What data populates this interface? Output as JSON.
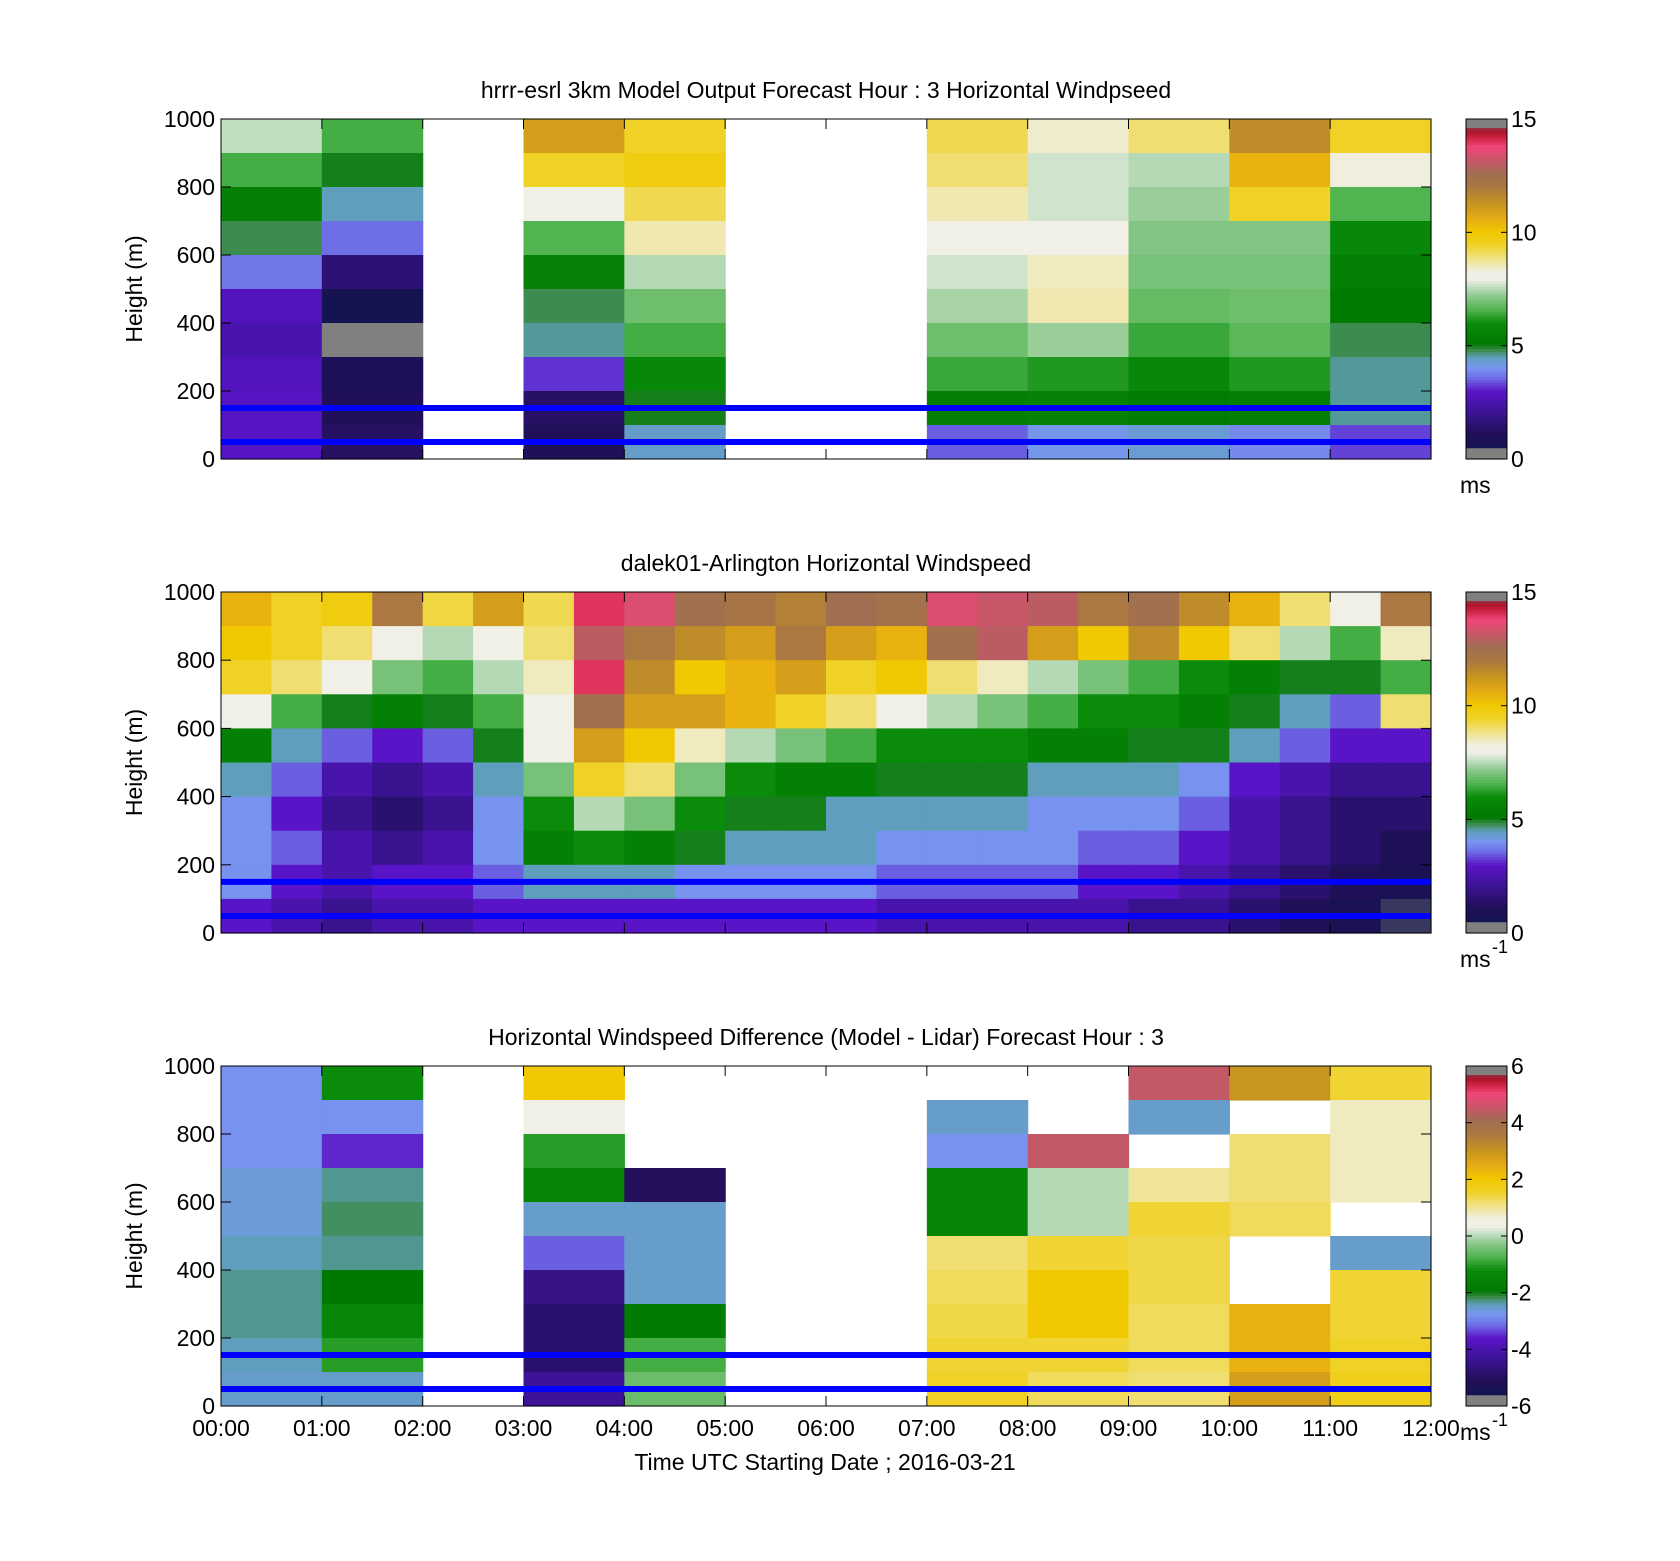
{
  "chart_data": [
    {
      "type": "heatmap",
      "title": "hrrr-esrl 3km Model Output   Forecast Hour : 3 Horizontal Windpseed",
      "ylabel": "Height (m)",
      "ylim": [
        0,
        1000
      ],
      "yticks": [
        "0",
        "200",
        "400",
        "600",
        "800",
        "1000"
      ],
      "xlim": [
        "00:00",
        "12:00"
      ],
      "colorbar": {
        "ticks": [
          "0",
          "5",
          "10",
          "15"
        ],
        "range": [
          0,
          15
        ],
        "unit": "ms"
      },
      "reference_lines_m": [
        50,
        150
      ],
      "time_bins": [
        "00:00",
        "01:00",
        "02:00",
        "03:00",
        "04:00",
        "05:00",
        "06:00",
        "07:00",
        "08:00",
        "09:00",
        "10:00",
        "11:00"
      ],
      "heights_top_m": [
        1000,
        900,
        800,
        700,
        600,
        500,
        400,
        300,
        200,
        100
      ],
      "values": [
        [
          7.6,
          6.5,
          null,
          11.0,
          9.5,
          null,
          null,
          9.2,
          8.4,
          9.0,
          11.5,
          9.5
        ],
        [
          6.5,
          5.0,
          null,
          9.5,
          9.8,
          null,
          null,
          9.0,
          7.7,
          7.5,
          10.5,
          8.3
        ],
        [
          5.5,
          4.5,
          null,
          8.2,
          9.2,
          null,
          null,
          8.6,
          7.7,
          7.3,
          9.5,
          6.6
        ],
        [
          4.8,
          3.6,
          null,
          6.6,
          8.6,
          null,
          null,
          8.0,
          8.1,
          7.1,
          7.1,
          5.8
        ],
        [
          3.7,
          1.6,
          null,
          5.6,
          7.5,
          null,
          null,
          7.7,
          8.5,
          7.0,
          7.0,
          5.4
        ],
        [
          2.8,
          0.6,
          null,
          4.8,
          6.9,
          null,
          null,
          7.4,
          8.6,
          6.8,
          6.9,
          5.2
        ],
        [
          2.5,
          0.3,
          null,
          4.6,
          6.5,
          null,
          null,
          6.9,
          7.3,
          6.4,
          6.7,
          4.8
        ],
        [
          2.8,
          0.9,
          null,
          3.2,
          5.8,
          null,
          null,
          6.4,
          6.2,
          5.8,
          6.2,
          4.6
        ],
        [
          2.9,
          1.1,
          null,
          1.4,
          5.0,
          null,
          null,
          5.5,
          5.6,
          5.3,
          5.5,
          4.6
        ],
        [
          2.9,
          1.3,
          null,
          1.0,
          4.4,
          null,
          null,
          3.5,
          4.1,
          4.3,
          3.9,
          3.3
        ]
      ]
    },
    {
      "type": "heatmap",
      "title": "dalek01-Arlington  Horizontal Windspeed",
      "ylabel": "Height (m)",
      "ylim": [
        0,
        1000
      ],
      "yticks": [
        "0",
        "200",
        "400",
        "600",
        "800",
        "1000"
      ],
      "xlim": [
        "00:00",
        "12:00"
      ],
      "colorbar": {
        "ticks": [
          "0",
          "5",
          "10",
          "15"
        ],
        "range": [
          0,
          15
        ],
        "unit": "ms",
        "unit_exp": "-1"
      },
      "reference_lines_m": [
        50,
        150
      ],
      "time_bins": [
        "00:00",
        "00:30",
        "01:00",
        "01:30",
        "02:00",
        "02:30",
        "03:00",
        "03:30",
        "04:00",
        "04:30",
        "05:00",
        "05:30",
        "06:00",
        "06:30",
        "07:00",
        "07:30",
        "08:00",
        "08:30",
        "09:00",
        "09:30",
        "10:00",
        "10:30",
        "11:00",
        "11:30"
      ],
      "heights_top_m": [
        1000,
        900,
        800,
        700,
        600,
        500,
        400,
        300,
        200,
        100
      ],
      "values": [
        [
          10.5,
          9.5,
          9.8,
          12.0,
          9.3,
          11.0,
          9.2,
          14.0,
          13.5,
          12.5,
          12.2,
          11.8,
          12.6,
          12.4,
          13.5,
          13.2,
          13.0,
          12.0,
          12.5,
          11.5,
          10.5,
          9.0,
          8.0,
          12.0
        ],
        [
          10.0,
          9.5,
          9.0,
          8.0,
          7.5,
          8.0,
          9.0,
          13.0,
          12.0,
          11.5,
          11.0,
          12.0,
          11.0,
          10.5,
          12.5,
          13.0,
          11.0,
          10.0,
          11.5,
          10.0,
          9.0,
          7.5,
          6.5,
          8.5
        ],
        [
          9.5,
          9.0,
          8.0,
          7.0,
          6.5,
          7.5,
          8.5,
          14.0,
          11.5,
          10.0,
          10.5,
          11.0,
          9.5,
          10.0,
          9.0,
          8.5,
          7.5,
          7.0,
          6.5,
          6.0,
          5.5,
          5.0,
          5.0,
          6.5
        ],
        [
          8.0,
          6.5,
          5.0,
          5.5,
          5.0,
          6.5,
          8.0,
          12.5,
          11.0,
          11.0,
          10.5,
          9.5,
          9.0,
          8.0,
          7.5,
          7.0,
          6.5,
          6.0,
          6.0,
          5.5,
          5.0,
          4.5,
          3.5,
          9.0
        ],
        [
          5.5,
          4.5,
          3.5,
          3.0,
          3.5,
          5.0,
          8.0,
          11.0,
          10.0,
          8.5,
          7.5,
          7.0,
          6.5,
          6.0,
          6.0,
          6.0,
          5.5,
          5.5,
          5.0,
          5.0,
          4.5,
          3.5,
          3.0,
          3.0
        ],
        [
          4.5,
          3.5,
          2.5,
          2.0,
          2.5,
          4.5,
          7.0,
          9.5,
          9.0,
          7.0,
          6.0,
          5.5,
          5.5,
          5.0,
          5.0,
          5.0,
          4.5,
          4.5,
          4.5,
          4.0,
          3.0,
          2.5,
          2.0,
          2.0
        ],
        [
          4.0,
          3.0,
          2.0,
          1.5,
          2.0,
          4.0,
          6.0,
          7.5,
          7.0,
          6.0,
          5.0,
          5.0,
          4.5,
          4.5,
          4.5,
          4.5,
          4.0,
          4.0,
          4.0,
          3.5,
          2.5,
          2.0,
          1.5,
          1.5
        ],
        [
          4.0,
          3.5,
          2.5,
          2.0,
          2.5,
          4.0,
          5.5,
          6.0,
          5.5,
          5.0,
          4.5,
          4.5,
          4.5,
          4.0,
          4.0,
          4.0,
          4.0,
          3.5,
          3.5,
          3.0,
          2.5,
          2.0,
          1.5,
          1.0
        ],
        [
          4.0,
          3.0,
          2.5,
          3.0,
          3.0,
          3.5,
          4.5,
          4.5,
          4.5,
          4.0,
          4.0,
          4.0,
          4.0,
          3.5,
          3.5,
          3.5,
          3.5,
          3.0,
          3.0,
          2.5,
          2.0,
          1.5,
          1.0,
          0.8
        ],
        [
          3.0,
          2.5,
          2.0,
          2.5,
          2.5,
          3.0,
          3.0,
          3.0,
          3.0,
          3.0,
          3.0,
          3.0,
          3.0,
          2.5,
          2.5,
          2.5,
          2.5,
          2.5,
          2.0,
          2.0,
          1.5,
          1.0,
          0.8,
          0.5
        ]
      ]
    },
    {
      "type": "heatmap",
      "title": "Horizontal Windspeed Difference (Model - Lidar) Forecast Hour : 3",
      "ylabel": "Height (m)",
      "xlabel": "Time UTC  Starting Date ; 2016-03-21",
      "ylim": [
        0,
        1000
      ],
      "yticks": [
        "0",
        "200",
        "400",
        "600",
        "800",
        "1000"
      ],
      "xticks": [
        "00:00",
        "01:00",
        "02:00",
        "03:00",
        "04:00",
        "05:00",
        "06:00",
        "07:00",
        "08:00",
        "09:00",
        "10:00",
        "11:00",
        "12:00"
      ],
      "colorbar": {
        "ticks": [
          "-6",
          "-4",
          "-2",
          "0",
          "2",
          "4",
          "6"
        ],
        "range": [
          -6,
          6
        ],
        "unit": "ms",
        "unit_exp": "-1"
      },
      "reference_lines_m": [
        50,
        150
      ],
      "time_bins": [
        "00:00",
        "01:00",
        "02:00",
        "03:00",
        "04:00",
        "05:00",
        "06:00",
        "07:00",
        "08:00",
        "09:00",
        "10:00",
        "11:00"
      ],
      "heights_top_m": [
        1000,
        900,
        800,
        700,
        600,
        500,
        400,
        300,
        200,
        100
      ],
      "values": [
        [
          -2.8,
          -1.2,
          null,
          2.0,
          null,
          null,
          null,
          null,
          null,
          4.5,
          3.0,
          1.5
        ],
        [
          -2.8,
          -2.8,
          null,
          0.5,
          null,
          null,
          null,
          -2.5,
          null,
          -2.5,
          null,
          0.8
        ],
        [
          -2.8,
          -3.5,
          null,
          -1.0,
          null,
          null,
          null,
          -2.8,
          4.5,
          null,
          1.2,
          0.8
        ],
        [
          -2.6,
          -2.3,
          null,
          -1.5,
          -5.0,
          null,
          null,
          -1.5,
          0.0,
          1.0,
          1.2,
          0.8
        ],
        [
          -2.6,
          -2.2,
          null,
          -2.5,
          -2.5,
          null,
          null,
          -1.5,
          0.0,
          1.5,
          1.3,
          null
        ],
        [
          -2.4,
          -2.3,
          null,
          -3.2,
          -2.5,
          null,
          null,
          1.2,
          1.5,
          1.4,
          null,
          -2.5
        ],
        [
          -2.3,
          -1.9,
          null,
          -4.5,
          -2.5,
          null,
          null,
          1.3,
          2.0,
          1.4,
          null,
          1.5
        ],
        [
          -2.3,
          -1.4,
          null,
          -4.8,
          -1.8,
          null,
          null,
          1.4,
          2.0,
          1.3,
          2.4,
          1.5
        ],
        [
          -2.4,
          -1.0,
          null,
          -4.8,
          -0.8,
          null,
          null,
          1.5,
          1.5,
          1.3,
          2.4,
          1.6
        ],
        [
          -2.5,
          -2.5,
          null,
          -4.3,
          -0.5,
          null,
          null,
          1.6,
          1.3,
          1.2,
          2.8,
          1.7
        ]
      ]
    }
  ]
}
